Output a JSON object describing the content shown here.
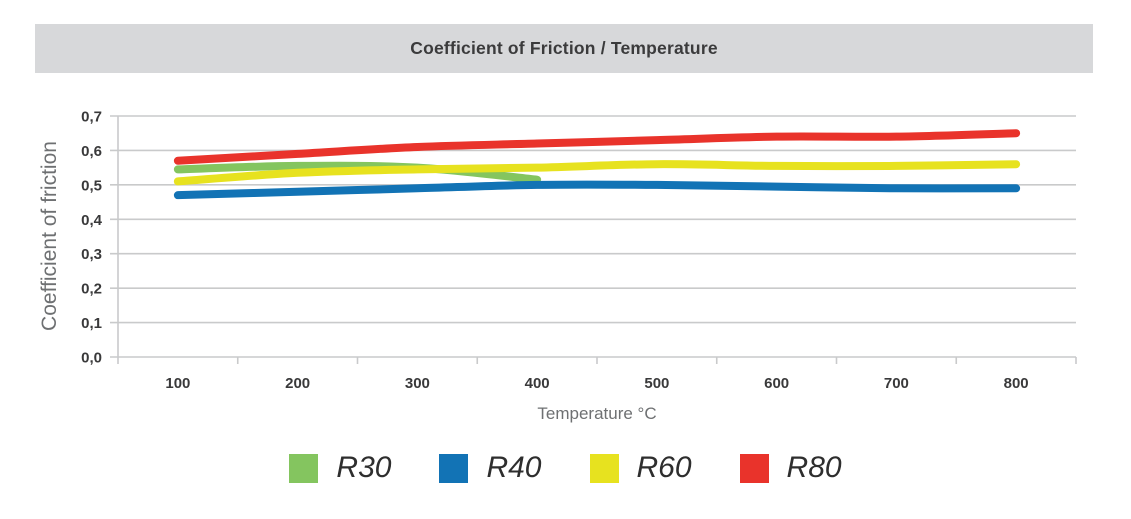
{
  "header": {
    "title": "Coefficient of Friction / Temperature"
  },
  "chart_data": {
    "type": "line",
    "title": "Coefficient of Friction / Temperature",
    "xlabel": "Temperature °C",
    "ylabel": "Coefficient of friction",
    "categories": [
      "100",
      "200",
      "300",
      "400",
      "500",
      "600",
      "700",
      "800"
    ],
    "ylim": [
      0,
      0.7
    ],
    "ytick_step": 0.1,
    "ytick_labels": [
      "0,0",
      "0,1",
      "0,2",
      "0,3",
      "0,4",
      "0,5",
      "0,6",
      "0,7"
    ],
    "grid": "horizontal",
    "legend_position": "bottom",
    "series": [
      {
        "name": "R30",
        "color": "#84C55F",
        "values": [
          0.545,
          0.555,
          0.55,
          0.515,
          null,
          null,
          null,
          null
        ]
      },
      {
        "name": "R40",
        "color": "#1273B5",
        "values": [
          0.47,
          0.48,
          0.49,
          0.5,
          0.5,
          0.495,
          0.49,
          0.49
        ]
      },
      {
        "name": "R60",
        "color": "#E7E21F",
        "values": [
          0.51,
          0.535,
          0.545,
          0.55,
          0.56,
          0.555,
          0.555,
          0.56
        ]
      },
      {
        "name": "R80",
        "color": "#E9332B",
        "values": [
          0.57,
          0.59,
          0.61,
          0.62,
          0.63,
          0.64,
          0.64,
          0.65
        ]
      }
    ],
    "colors": {
      "grid": "#C9CACB",
      "axis": "#C9CACB",
      "tick_text": "#39393A",
      "muted_text": "#6E7072",
      "title_bar_bg": "#D7D8DA",
      "title_text": "#3B3B3C"
    }
  }
}
